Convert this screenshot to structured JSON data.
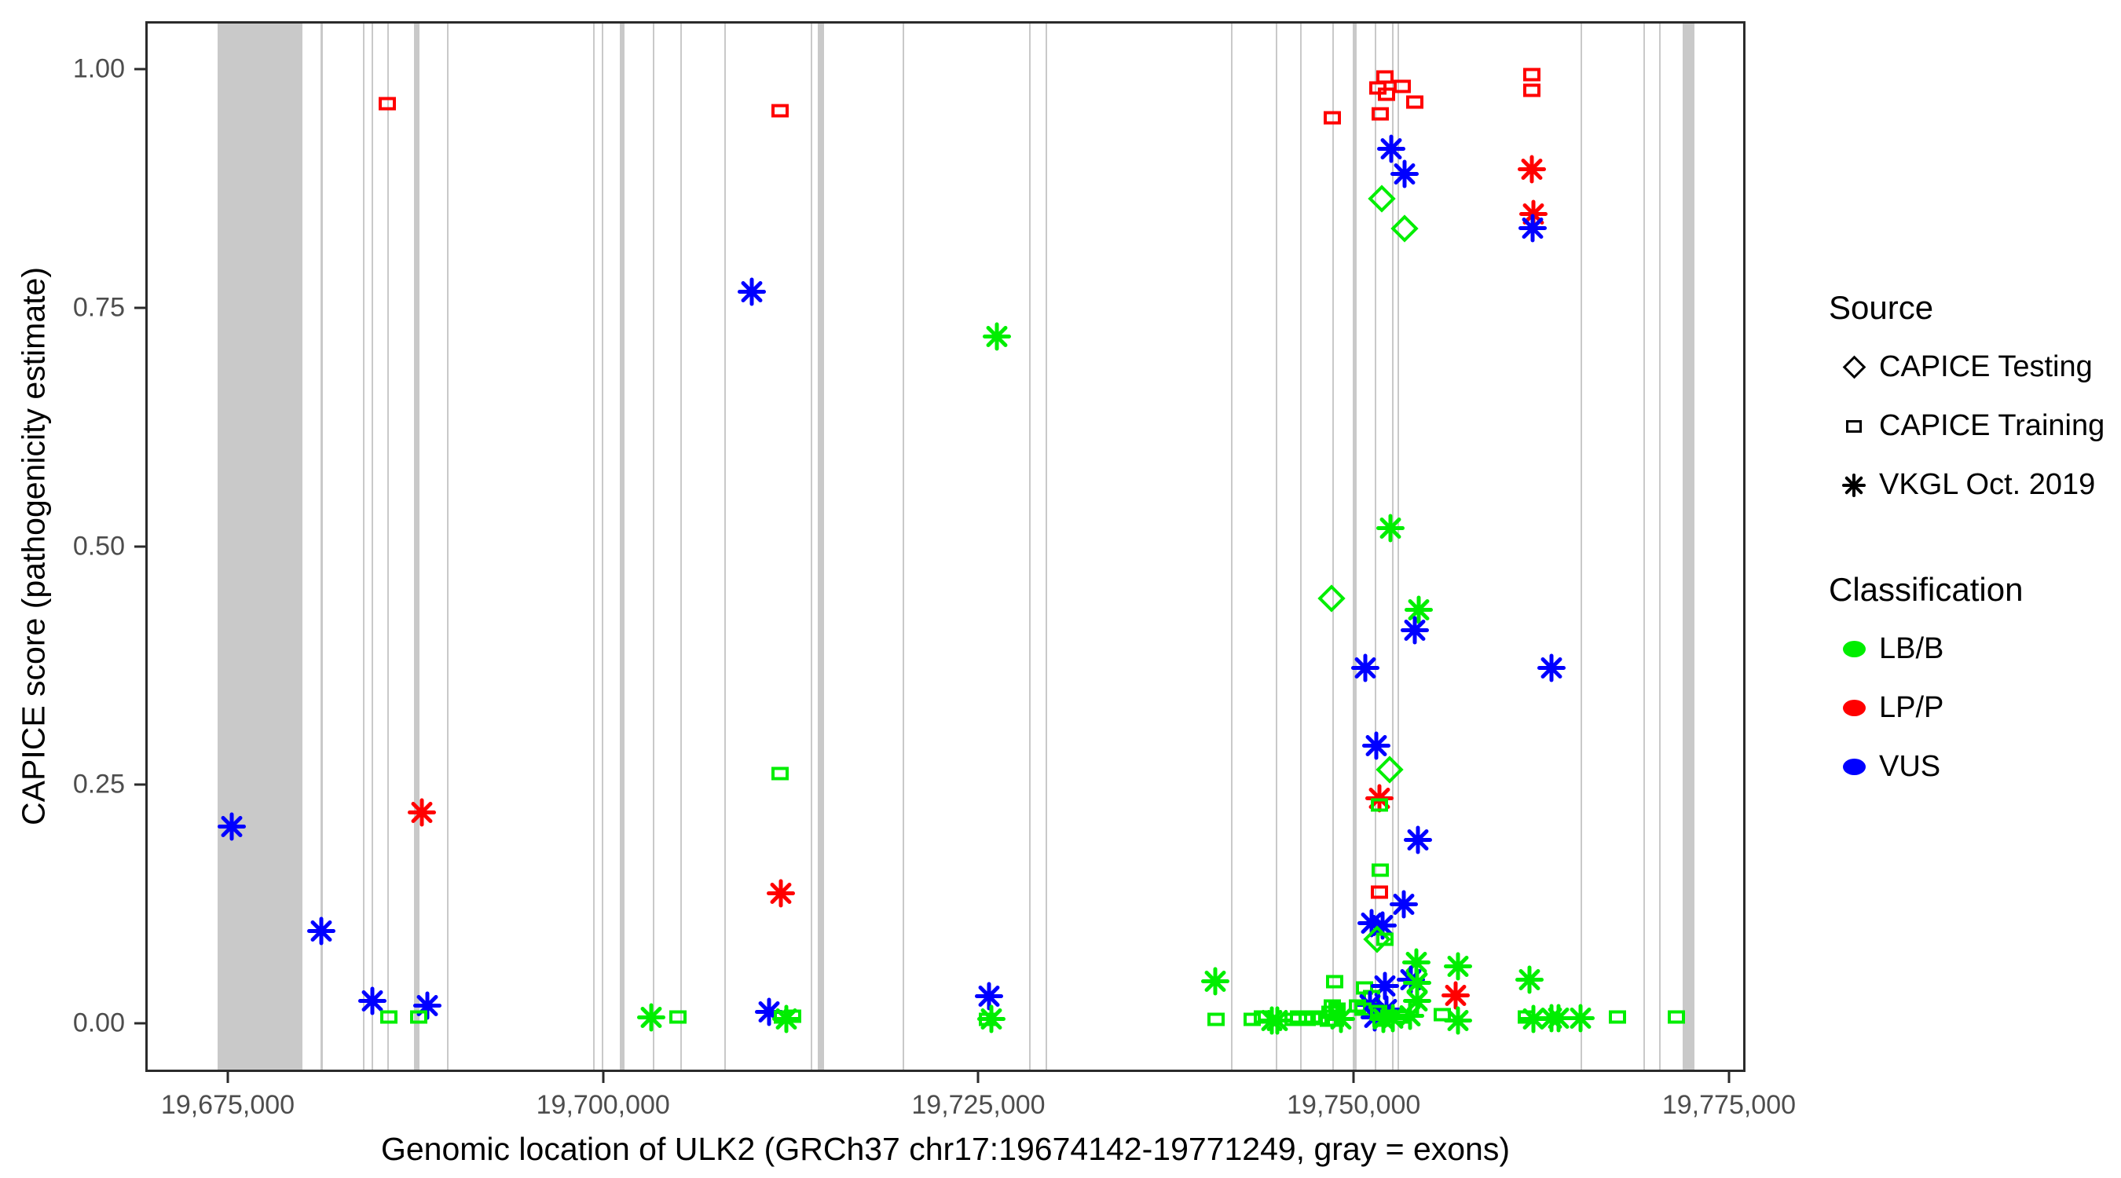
{
  "figure": {
    "x_axis": {
      "title": "Genomic location of ULK2 (GRCh37 chr17:19674142-19771249, gray = exons)",
      "ticks": [
        {
          "value": 19675000,
          "label": "19,675,000"
        },
        {
          "value": 19700000,
          "label": "19,700,000"
        },
        {
          "value": 19725000,
          "label": "19,725,000"
        },
        {
          "value": 19750000,
          "label": "19,750,000"
        },
        {
          "value": 19775000,
          "label": "19,775,000"
        }
      ]
    },
    "y_axis": {
      "title": "CAPICE score (pathogenicity estimate)",
      "ticks": [
        {
          "value": 1.0,
          "label": "1.00"
        },
        {
          "value": 0.75,
          "label": "0.75"
        },
        {
          "value": 0.5,
          "label": "0.50"
        },
        {
          "value": 0.25,
          "label": "0.25"
        },
        {
          "value": 0.0,
          "label": "0.00"
        }
      ]
    }
  },
  "legend": {
    "source": {
      "title": "Source",
      "items": [
        {
          "label": "CAPICE Testing",
          "marker": "diamond"
        },
        {
          "label": "CAPICE Training",
          "marker": "square"
        },
        {
          "label": "VKGL Oct. 2019",
          "marker": "asterisk"
        }
      ]
    },
    "classification": {
      "title": "Classification",
      "items": [
        {
          "label": "LB/B",
          "color": "#00ee00"
        },
        {
          "label": "LP/P",
          "color": "#ff0000"
        },
        {
          "label": "VUS",
          "color": "#0000ff"
        }
      ]
    }
  },
  "colors": {
    "lbb": "#00ee00",
    "lpp": "#ff0000",
    "vus": "#0000ff",
    "exon_gray": "#c9c9c9",
    "axis_text": "#4d4d4d",
    "panel_border": "#2b2b2b"
  },
  "chart_data": {
    "type": "scatter",
    "title": "",
    "xlabel": "Genomic location of ULK2 (GRCh37 chr17:19674142-19771249, gray = exons)",
    "ylabel": "CAPICE score (pathogenicity estimate)",
    "gene": {
      "name": "ULK2",
      "assembly": "GRCh37",
      "chromosome": "chr17",
      "start": 19674142,
      "end": 19771249
    },
    "x_domain": [
      19669505,
      19776101
    ],
    "y_domain": [
      -0.051,
      1.0505
    ],
    "legend_position": "right",
    "grid": false,
    "marker_encoding": {
      "testing": "diamond = CAPICE Testing",
      "training": "square = CAPICE Training",
      "vkgl": "asterisk = VKGL Oct. 2019"
    },
    "color_encoding": {
      "lbb": "green = LB/B",
      "lpp": "red = LP/P",
      "vus": "blue = VUS"
    },
    "exons_bp": [
      [
        19674150,
        19679850
      ],
      [
        19681070,
        19681230
      ],
      [
        19683900,
        19684000
      ],
      [
        19684470,
        19684580
      ],
      [
        19685520,
        19685620
      ],
      [
        19687300,
        19687670
      ],
      [
        19689500,
        19689600
      ],
      [
        19699280,
        19699390
      ],
      [
        19699860,
        19699960
      ],
      [
        19701060,
        19701380
      ],
      [
        19703260,
        19703360
      ],
      [
        19705090,
        19705200
      ],
      [
        19708020,
        19708130
      ],
      [
        19713780,
        19713880
      ],
      [
        19714250,
        19714670
      ],
      [
        19719950,
        19720060
      ],
      [
        19728380,
        19728490
      ],
      [
        19729480,
        19729590
      ],
      [
        19741880,
        19741980
      ],
      [
        19744860,
        19744960
      ],
      [
        19746480,
        19746590
      ],
      [
        19748630,
        19748730
      ],
      [
        19749990,
        19750300
      ],
      [
        19751510,
        19751610
      ],
      [
        19752660,
        19752760
      ],
      [
        19753020,
        19753130
      ],
      [
        19765260,
        19765360
      ],
      [
        19769440,
        19769550
      ],
      [
        19770490,
        19770600
      ],
      [
        19772060,
        19772850
      ]
    ],
    "point_format": [
      "genomic_position_bp",
      "capice_score",
      "source",
      "classification"
    ],
    "points": [
      [
        19675100,
        0.205,
        "vkgl",
        "vus"
      ],
      [
        19681100,
        0.095,
        "vkgl",
        "vus"
      ],
      [
        19685500,
        0.966,
        "training",
        "lpp"
      ],
      [
        19684500,
        0.021,
        "vkgl",
        "vus"
      ],
      [
        19685600,
        0.004,
        "training",
        "lbb"
      ],
      [
        19687800,
        0.22,
        "vkgl",
        "lpp"
      ],
      [
        19688200,
        0.016,
        "vkgl",
        "vus"
      ],
      [
        19687600,
        0.004,
        "training",
        "lbb"
      ],
      [
        19703150,
        0.004,
        "vkgl",
        "lbb"
      ],
      [
        19704950,
        0.004,
        "training",
        "lbb"
      ],
      [
        19711750,
        0.959,
        "training",
        "lpp"
      ],
      [
        19709850,
        0.768,
        "vkgl",
        "vus"
      ],
      [
        19711750,
        0.261,
        "training",
        "lbb"
      ],
      [
        19711800,
        0.135,
        "vkgl",
        "lpp"
      ],
      [
        19711000,
        0.01,
        "vkgl",
        "vus"
      ],
      [
        19711900,
        0.004,
        "training",
        "lbb"
      ],
      [
        19712150,
        0.002,
        "vkgl",
        "lbb"
      ],
      [
        19712600,
        0.005,
        "training",
        "lbb"
      ],
      [
        19726250,
        0.721,
        "vkgl",
        "lbb"
      ],
      [
        19725700,
        0.026,
        "vkgl",
        "vus"
      ],
      [
        19725600,
        0.002,
        "training",
        "lbb"
      ],
      [
        19725850,
        0.002,
        "vkgl",
        "lbb"
      ],
      [
        19740850,
        0.042,
        "vkgl",
        "lbb"
      ],
      [
        19740900,
        0.002,
        "training",
        "lbb"
      ],
      [
        19743300,
        0.002,
        "training",
        "lbb"
      ],
      [
        19744000,
        0.004,
        "training",
        "lbb"
      ],
      [
        19744600,
        0.001,
        "vkgl",
        "lbb"
      ],
      [
        19745000,
        0.001,
        "vkgl",
        "lbb"
      ],
      [
        19746050,
        0.002,
        "training",
        "lbb"
      ],
      [
        19746400,
        0.004,
        "training",
        "lbb"
      ],
      [
        19746950,
        0.002,
        "training",
        "lbb"
      ],
      [
        19747350,
        0.004,
        "training",
        "lbb"
      ],
      [
        19747750,
        0.003,
        "training",
        "lbb"
      ],
      [
        19748650,
        0.951,
        "training",
        "lpp"
      ],
      [
        19748600,
        0.445,
        "testing",
        "lbb"
      ],
      [
        19748800,
        0.042,
        "training",
        "lbb"
      ],
      [
        19748650,
        0.016,
        "training",
        "lbb"
      ],
      [
        19748950,
        0.013,
        "training",
        "lbb"
      ],
      [
        19749250,
        0.002,
        "vkgl",
        "lbb"
      ],
      [
        19748850,
        0.001,
        "training",
        "lbb"
      ],
      [
        19748400,
        0.001,
        "training",
        "lbb"
      ],
      [
        19751700,
        0.983,
        "training",
        "lpp"
      ],
      [
        19751850,
        0.955,
        "training",
        "lpp"
      ],
      [
        19752150,
        0.994,
        "training",
        "lpp"
      ],
      [
        19752250,
        0.976,
        "training",
        "lpp"
      ],
      [
        19753300,
        0.984,
        "training",
        "lpp"
      ],
      [
        19754150,
        0.968,
        "training",
        "lpp"
      ],
      [
        19752600,
        0.919,
        "vkgl",
        "vus"
      ],
      [
        19753500,
        0.892,
        "vkgl",
        "vus"
      ],
      [
        19751950,
        0.866,
        "testing",
        "lbb"
      ],
      [
        19753500,
        0.835,
        "testing",
        "lbb"
      ],
      [
        19752550,
        0.519,
        "vkgl",
        "lbb"
      ],
      [
        19754400,
        0.433,
        "vkgl",
        "lbb"
      ],
      [
        19754150,
        0.412,
        "vkgl",
        "vus"
      ],
      [
        19750850,
        0.372,
        "vkgl",
        "vus"
      ],
      [
        19751600,
        0.29,
        "vkgl",
        "vus"
      ],
      [
        19752500,
        0.265,
        "testing",
        "lbb"
      ],
      [
        19751800,
        0.235,
        "vkgl",
        "lpp"
      ],
      [
        19751800,
        0.228,
        "training",
        "lbb"
      ],
      [
        19754350,
        0.191,
        "vkgl",
        "vus"
      ],
      [
        19751850,
        0.159,
        "training",
        "lbb"
      ],
      [
        19751800,
        0.136,
        "training",
        "lpp"
      ],
      [
        19753450,
        0.123,
        "vkgl",
        "vus"
      ],
      [
        19751300,
        0.103,
        "vkgl",
        "vus"
      ],
      [
        19752000,
        0.101,
        "vkgl",
        "vus"
      ],
      [
        19751650,
        0.086,
        "testing",
        "lbb"
      ],
      [
        19752150,
        0.086,
        "training",
        "lbb"
      ],
      [
        19754250,
        0.062,
        "vkgl",
        "lbb"
      ],
      [
        19757050,
        0.058,
        "vkgl",
        "lbb"
      ],
      [
        19753900,
        0.044,
        "vkgl",
        "vus"
      ],
      [
        19750800,
        0.035,
        "training",
        "lbb"
      ],
      [
        19752150,
        0.037,
        "vkgl",
        "vus"
      ],
      [
        19754300,
        0.04,
        "vkgl",
        "lbb"
      ],
      [
        19751300,
        0.026,
        "training",
        "lbb"
      ],
      [
        19756900,
        0.027,
        "vkgl",
        "lpp"
      ],
      [
        19754300,
        0.021,
        "vkgl",
        "lbb"
      ],
      [
        19751150,
        0.017,
        "vkgl",
        "vus"
      ],
      [
        19752250,
        0.012,
        "vkgl",
        "vus"
      ],
      [
        19756000,
        0.007,
        "training",
        "lbb"
      ],
      [
        19757050,
        0.001,
        "vkgl",
        "lbb"
      ],
      [
        19748500,
        0.009,
        "training",
        "lbb"
      ],
      [
        19750350,
        0.016,
        "training",
        "lbb"
      ],
      [
        19750700,
        0.013,
        "training",
        "lbb"
      ],
      [
        19751500,
        0.004,
        "vkgl",
        "vus"
      ],
      [
        19751750,
        0.01,
        "training",
        "lbb"
      ],
      [
        19752050,
        0.002,
        "vkgl",
        "lbb"
      ],
      [
        19752450,
        0.005,
        "training",
        "lbb"
      ],
      [
        19753200,
        0.004,
        "training",
        "lbb"
      ],
      [
        19753850,
        0.006,
        "vkgl",
        "lbb"
      ],
      [
        19751900,
        0.001,
        "training",
        "lbb"
      ],
      [
        19752700,
        0.003,
        "vkgl",
        "lbb"
      ],
      [
        19762000,
        0.997,
        "training",
        "lpp"
      ],
      [
        19762000,
        0.98,
        "training",
        "lpp"
      ],
      [
        19762000,
        0.897,
        "vkgl",
        "lpp"
      ],
      [
        19762100,
        0.85,
        "vkgl",
        "lpp"
      ],
      [
        19762050,
        0.835,
        "vkgl",
        "vus"
      ],
      [
        19763300,
        0.372,
        "vkgl",
        "vus"
      ],
      [
        19761850,
        0.044,
        "vkgl",
        "lbb"
      ],
      [
        19761600,
        0.004,
        "training",
        "lbb"
      ],
      [
        19762100,
        0.002,
        "vkgl",
        "lbb"
      ],
      [
        19763300,
        0.003,
        "vkgl",
        "lbb"
      ],
      [
        19763750,
        0.003,
        "vkgl",
        "lbb"
      ],
      [
        19765250,
        0.003,
        "vkgl",
        "lbb"
      ],
      [
        19767700,
        0.004,
        "training",
        "lbb"
      ],
      [
        19771650,
        0.004,
        "training",
        "lbb"
      ]
    ]
  }
}
